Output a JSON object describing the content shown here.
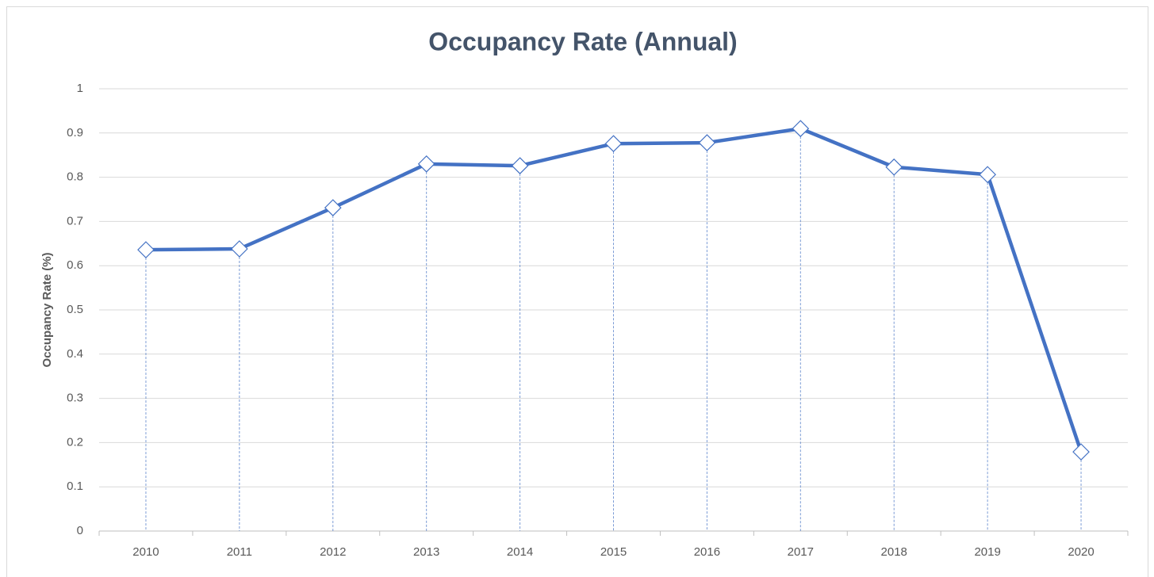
{
  "chart_data": {
    "type": "line",
    "title": "Occupancy Rate (Annual)",
    "y_label": "Occupancy Rate (%)",
    "categories": [
      "2010",
      "2011",
      "2012",
      "2013",
      "2014",
      "2015",
      "2016",
      "2017",
      "2018",
      "2019",
      "2020"
    ],
    "series": [
      {
        "name": "Occupancy Rate",
        "color": "#4472c4",
        "values": [
          0.636,
          0.638,
          0.731,
          0.83,
          0.826,
          0.876,
          0.878,
          0.91,
          0.823,
          0.806,
          0.179
        ]
      }
    ],
    "ylim": [
      0,
      1
    ],
    "yticks": [
      0,
      0.1,
      0.2,
      0.3,
      0.4,
      0.5,
      0.6,
      0.7,
      0.8,
      0.9,
      1
    ],
    "grid": true,
    "drop_lines": true
  }
}
